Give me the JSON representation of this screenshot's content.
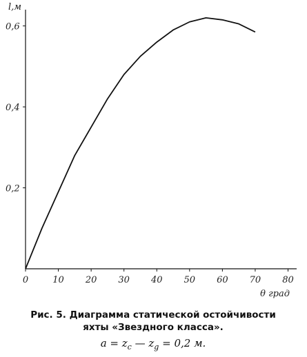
{
  "chart_data": {
    "type": "line",
    "ylabel": "l,м",
    "xlabel": "θ град",
    "x": [
      0,
      5,
      10,
      15,
      20,
      25,
      30,
      35,
      40,
      45,
      50,
      55,
      60,
      65,
      70
    ],
    "series": [
      {
        "name": "l",
        "color": "#111111",
        "values": [
          0,
          0.1,
          0.19,
          0.28,
          0.35,
          0.42,
          0.48,
          0.525,
          0.56,
          0.59,
          0.61,
          0.62,
          0.615,
          0.605,
          0.585
        ]
      }
    ],
    "xlim": [
      0,
      82
    ],
    "ylim": [
      0,
      0.63
    ],
    "xticks": [
      0,
      10,
      20,
      30,
      40,
      50,
      60,
      70,
      80
    ],
    "yticks": [
      {
        "value": 0.2,
        "label": "0,2"
      },
      {
        "value": 0.4,
        "label": "0,4"
      },
      {
        "value": 0.6,
        "label": "0,6"
      }
    ],
    "caption": [
      "Рис. 5. Диаграмма статической остойчивости",
      "яхты «Звездного класса»."
    ],
    "formula": [
      "a = z",
      "c",
      " — z",
      "g",
      " = 0,2 м."
    ]
  }
}
